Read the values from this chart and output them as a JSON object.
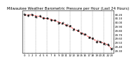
{
  "title": "Milwaukee Weather Barometric Pressure per Hour (Last 24 Hours)",
  "hours": [
    0,
    1,
    2,
    3,
    4,
    5,
    6,
    7,
    8,
    9,
    10,
    11,
    12,
    13,
    14,
    15,
    16,
    17,
    18,
    19,
    20,
    21,
    22,
    23
  ],
  "pressure": [
    30.18,
    30.2,
    30.19,
    30.17,
    30.16,
    30.12,
    30.1,
    30.08,
    30.05,
    30.02,
    29.98,
    29.95,
    29.9,
    29.85,
    29.8,
    29.75,
    29.7,
    29.65,
    29.6,
    29.55,
    29.52,
    29.5,
    29.45,
    29.35
  ],
  "scatter_offsets": [
    0.02,
    -0.01,
    0.01,
    -0.02,
    0.015,
    -0.01,
    0.02,
    -0.015,
    0.01,
    -0.02,
    0.015,
    -0.01,
    0.02,
    -0.015,
    0.01,
    -0.02,
    0.015,
    -0.01,
    0.02,
    -0.015,
    0.01,
    -0.02,
    0.015,
    0.01
  ],
  "line_color": "#ff0000",
  "scatter_color": "#111111",
  "bg_color": "#ffffff",
  "grid_color": "#888888",
  "title_color": "#000000",
  "ylim_min": 29.25,
  "ylim_max": 30.3,
  "ytick_values": [
    29.3,
    29.4,
    29.5,
    29.6,
    29.7,
    29.8,
    29.9,
    30.0,
    30.1,
    30.2
  ],
  "title_fontsize": 3.8,
  "tick_fontsize": 2.8
}
